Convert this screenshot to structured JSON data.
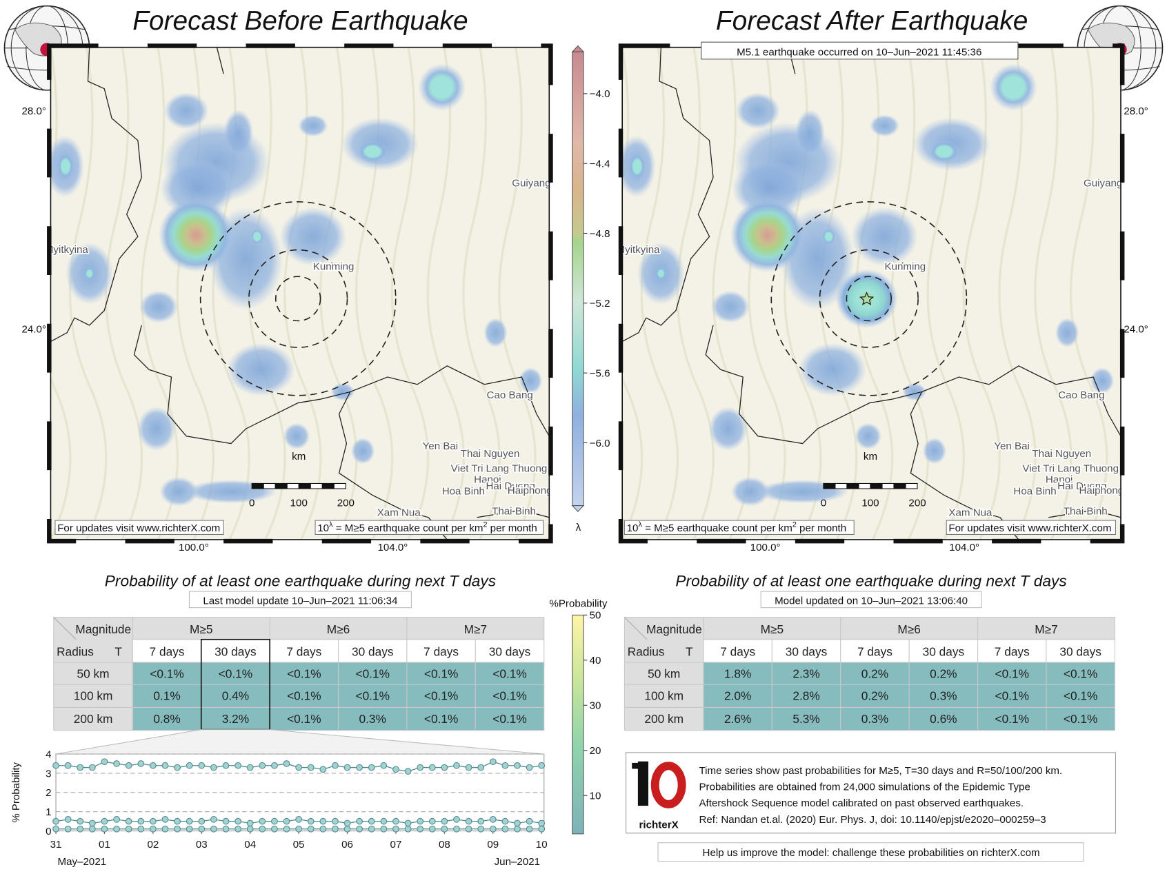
{
  "maps": [
    {
      "title": "Forecast Before Earthquake"
    },
    {
      "title": "Forecast After Earthquake",
      "event": "M5.1 earthquake occurred on 10–Jun–2021 11:45:36"
    }
  ],
  "map_labels": {
    "lat": [
      "28.0°",
      "24.0°"
    ],
    "lon": [
      "100.0°",
      "104.0°"
    ],
    "cities": [
      "Guiyang",
      "Myitkyina",
      "Kunming",
      "Cao Bang",
      "Yen Bai",
      "Thai Nguyen",
      "Viet Tri",
      "Lang Thuong",
      "Hanoi",
      "Hai Duong",
      "Hoa Binh",
      "Haiphong",
      "Thai Binh",
      "Xam Nua"
    ],
    "updates": "For updates visit www.richterX.com",
    "rate_note": [
      "10",
      "λ",
      " = M≥5 earthquake count per km",
      "2",
      " per month"
    ],
    "scale_bar": {
      "label": "km",
      "ticks": [
        0,
        100,
        200
      ]
    }
  },
  "lambda_colorbar": {
    "symbol": "λ",
    "ylim": [
      -6.36,
      -3.76
    ],
    "yticks": [
      {
        "value": -4.0,
        "label": "−4.0"
      },
      {
        "value": -4.4,
        "label": "−4.4"
      },
      {
        "value": -4.8,
        "label": "−4.8"
      },
      {
        "value": -5.2,
        "label": "−5.2"
      },
      {
        "value": -5.6,
        "label": "−5.6"
      },
      {
        "value": -6.0,
        "label": "−6.0"
      }
    ]
  },
  "probability_colorbar": {
    "title": "%Probability",
    "ylim": [
      1.5,
      50
    ],
    "yticks": [
      10,
      20,
      30,
      40,
      50
    ]
  },
  "table_title": "Probability of at least one earthquake during next T days",
  "table_header": {
    "magnitude": "Magnitude",
    "radius": "Radius",
    "t": "T",
    "magnitudes": [
      "M≥5",
      "M≥6",
      "M≥7"
    ],
    "periods": [
      "7 days",
      "30 days"
    ]
  },
  "tables": [
    {
      "update": "Last model update 10–Jun–2021 11:06:34",
      "rows": [
        {
          "radius": "50 km",
          "cells": [
            "<0.1%",
            "<0.1%",
            "<0.1%",
            "<0.1%",
            "<0.1%",
            "<0.1%"
          ]
        },
        {
          "radius": "100 km",
          "cells": [
            "0.1%",
            "0.4%",
            "<0.1%",
            "<0.1%",
            "<0.1%",
            "<0.1%"
          ]
        },
        {
          "radius": "200 km",
          "cells": [
            "0.8%",
            "3.2%",
            "<0.1%",
            "0.3%",
            "<0.1%",
            "<0.1%"
          ]
        }
      ]
    },
    {
      "update": "Model updated on 10–Jun–2021 13:06:40",
      "rows": [
        {
          "radius": "50 km",
          "cells": [
            "1.8%",
            "2.3%",
            "0.2%",
            "0.2%",
            "<0.1%",
            "<0.1%"
          ]
        },
        {
          "radius": "100 km",
          "cells": [
            "2.0%",
            "2.8%",
            "0.2%",
            "0.3%",
            "<0.1%",
            "<0.1%"
          ]
        },
        {
          "radius": "200 km",
          "cells": [
            "2.6%",
            "5.3%",
            "0.3%",
            "0.6%",
            "<0.1%",
            "<0.1%"
          ]
        }
      ]
    }
  ],
  "chart_data": {
    "type": "line",
    "ylabel": "% Probability",
    "xlim": [
      0,
      10.05
    ],
    "xticks": [
      {
        "value": 0,
        "label": "31"
      },
      {
        "value": 1,
        "label": "01"
      },
      {
        "value": 2,
        "label": "02"
      },
      {
        "value": 3,
        "label": "03"
      },
      {
        "value": 4,
        "label": "04"
      },
      {
        "value": 5,
        "label": "05"
      },
      {
        "value": 6,
        "label": "06"
      },
      {
        "value": 7,
        "label": "07"
      },
      {
        "value": 8,
        "label": "08"
      },
      {
        "value": 9,
        "label": "09"
      },
      {
        "value": 10,
        "label": "10"
      }
    ],
    "month_labels": [
      "May–2021",
      "Jun–2021"
    ],
    "ylim": [
      0,
      4
    ],
    "yticks": [
      0,
      1,
      2,
      3,
      4
    ],
    "grid": true,
    "x": [
      0,
      0.25,
      0.5,
      0.75,
      1,
      1.25,
      1.5,
      1.75,
      2,
      2.25,
      2.5,
      2.75,
      3,
      3.25,
      3.5,
      3.75,
      4,
      4.25,
      4.5,
      4.75,
      5,
      5.25,
      5.5,
      5.75,
      6,
      6.25,
      6.5,
      6.75,
      7,
      7.25,
      7.5,
      7.75,
      8,
      8.25,
      8.5,
      8.75,
      9,
      9.25,
      9.5,
      9.75,
      10
    ],
    "series": [
      {
        "color": "#4e8a8c",
        "values": [
          3.4,
          3.4,
          3.3,
          3.3,
          3.6,
          3.5,
          3.4,
          3.5,
          3.4,
          3.4,
          3.3,
          3.4,
          3.4,
          3.3,
          3.4,
          3.4,
          3.3,
          3.4,
          3.4,
          3.5,
          3.3,
          3.3,
          3.2,
          3.4,
          3.3,
          3.3,
          3.3,
          3.4,
          3.2,
          3.1,
          3.3,
          3.3,
          3.3,
          3.4,
          3.3,
          3.3,
          3.6,
          3.4,
          3.4,
          3.3,
          3.4
        ]
      },
      {
        "color": "#4e8a8c",
        "values": [
          0.5,
          0.6,
          0.5,
          0.4,
          0.5,
          0.6,
          0.5,
          0.5,
          0.5,
          0.6,
          0.5,
          0.5,
          0.5,
          0.6,
          0.5,
          0.5,
          0.4,
          0.5,
          0.5,
          0.5,
          0.6,
          0.5,
          0.5,
          0.5,
          0.4,
          0.5,
          0.5,
          0.5,
          0.5,
          0.4,
          0.5,
          0.5,
          0.5,
          0.6,
          0.5,
          0.5,
          0.6,
          0.5,
          0.4,
          0.5,
          0.4
        ]
      },
      {
        "color": "#4e8a8c",
        "values": [
          0.1,
          0.1,
          0.1,
          0.1,
          0.1,
          0.1,
          0.1,
          0.1,
          0.1,
          0.1,
          0.1,
          0.1,
          0.1,
          0.1,
          0.1,
          0.1,
          0.1,
          0.1,
          0.1,
          0.1,
          0.1,
          0.1,
          0.1,
          0.1,
          0.1,
          0.1,
          0.1,
          0.1,
          0.1,
          0.1,
          0.1,
          0.1,
          0.1,
          0.1,
          0.1,
          0.1,
          0.1,
          0.1,
          0.1,
          0.1,
          0.1
        ]
      }
    ]
  },
  "info": {
    "lines": [
      "Time series show past probabilities for M≥5, T=30 days and R=50/100/200 km.",
      "Probabilities are obtained from 24,000 simulations of the Epidemic Type",
      "Aftershock Sequence model calibrated on past observed earthquakes.",
      "Ref: Nandan et.al. (2020) Eur. Phys. J, doi: 10.1140/epjst/e2020–000259–3"
    ],
    "logo": "richterX",
    "help": "Help us improve the model: challenge these probabilities on richterX.com"
  }
}
